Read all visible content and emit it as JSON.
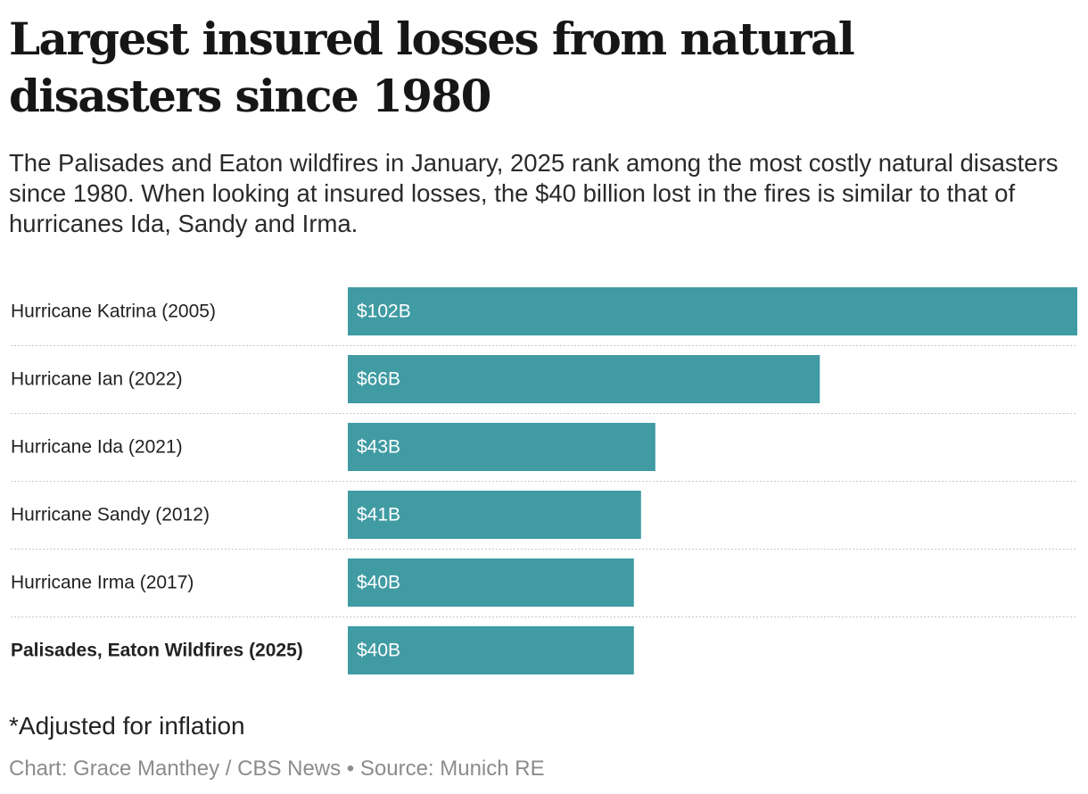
{
  "title": "Largest insured losses from natural disasters since 1980",
  "subtitle": "The Palisades and Eaton wildfires in January, 2025 rank among the most costly natural disasters since 1980. When looking at insured losses, the $40 billion lost in the fires is similar to that of hurricanes Ida, Sandy and Irma.",
  "note": "*Adjusted for inflation",
  "credit": "Chart: Grace Manthey / CBS News • Source: Munich RE",
  "colors": {
    "bar": "#409ba3"
  },
  "chart_data": {
    "type": "bar",
    "orientation": "horizontal",
    "categories": [
      "Hurricane Katrina (2005)",
      "Hurricane Ian (2022)",
      "Hurricane Ida (2021)",
      "Hurricane Sandy (2012)",
      "Hurricane Irma (2017)",
      "Palisades, Eaton Wildfires (2025)"
    ],
    "values": [
      102,
      66,
      43,
      41,
      40,
      40
    ],
    "value_labels": [
      "$102B",
      "$66B",
      "$43B",
      "$41B",
      "$40B",
      "$40B"
    ],
    "highlighted": "Palisades, Eaton Wildfires (2025)",
    "xlim": [
      0,
      102
    ],
    "grid": false
  }
}
